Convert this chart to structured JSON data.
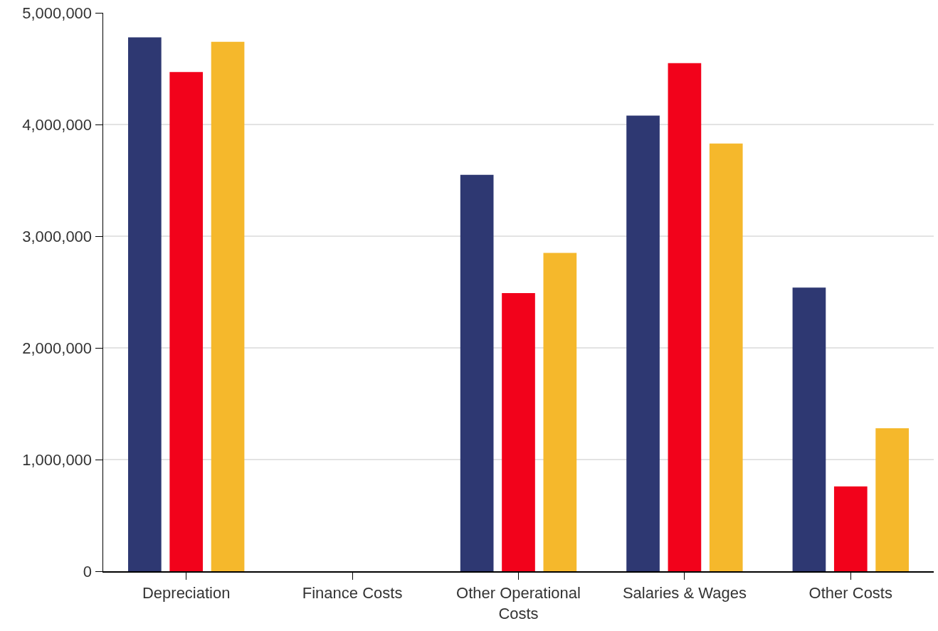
{
  "chart_data": {
    "type": "bar",
    "categories": [
      "Depreciation",
      "Finance Costs",
      "Other Operational Costs",
      "Salaries & Wages",
      "Other Costs"
    ],
    "series": [
      {
        "color": "#2e3872",
        "values": [
          4780000,
          0,
          3550000,
          4080000,
          2540000
        ]
      },
      {
        "color": "#f2021b",
        "values": [
          4470000,
          0,
          2490000,
          4550000,
          760000
        ]
      },
      {
        "color": "#f5b82c",
        "values": [
          4740000,
          0,
          2850000,
          3830000,
          1280000
        ]
      }
    ],
    "ylim": [
      0,
      5000000
    ],
    "yticks": [
      {
        "value": 0,
        "label": "0"
      },
      {
        "value": 1000000,
        "label": "1,000,000"
      },
      {
        "value": 2000000,
        "label": "2,000,000"
      },
      {
        "value": 3000000,
        "label": "3,000,000"
      },
      {
        "value": 4000000,
        "label": "4,000,000"
      },
      {
        "value": 5000000,
        "label": "5,000,000"
      }
    ],
    "grid": "y"
  }
}
